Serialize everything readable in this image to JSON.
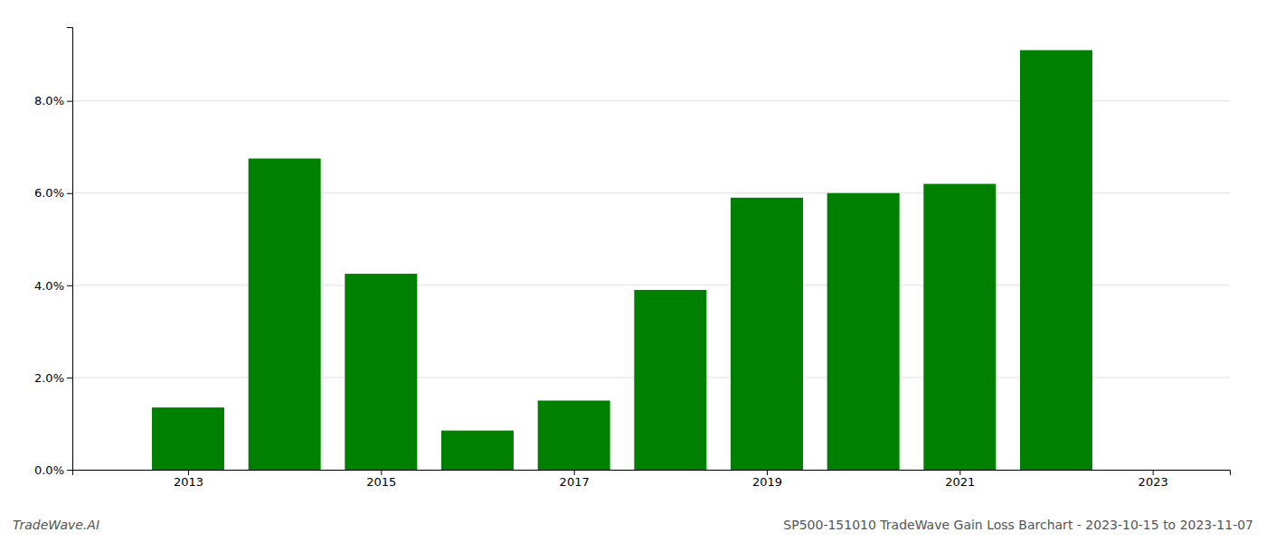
{
  "chart_data": {
    "type": "bar",
    "x": [
      2013,
      2014,
      2015,
      2016,
      2017,
      2018,
      2019,
      2020,
      2021,
      2022
    ],
    "values": [
      0.0135,
      0.0675,
      0.0425,
      0.0085,
      0.015,
      0.039,
      0.059,
      0.06,
      0.062,
      0.091
    ],
    "color": "#008000",
    "xlim": [
      2011.8,
      2023.8
    ],
    "xticks": [
      2013,
      2015,
      2017,
      2019,
      2021,
      2023
    ],
    "ylim": [
      0,
      0.096
    ],
    "yticks": [
      {
        "value": 0.0,
        "label": "0.0%"
      },
      {
        "value": 0.02,
        "label": "2.0%"
      },
      {
        "value": 0.04,
        "label": "4.0%"
      },
      {
        "value": 0.06,
        "label": "6.0%"
      },
      {
        "value": 0.08,
        "label": "8.0%"
      }
    ],
    "grid": true,
    "annotations": [
      "TradeWave.AI",
      "SP500-151010 TradeWave Gain Loss Barchart - 2023-10-15 to 2023-11-07"
    ]
  }
}
